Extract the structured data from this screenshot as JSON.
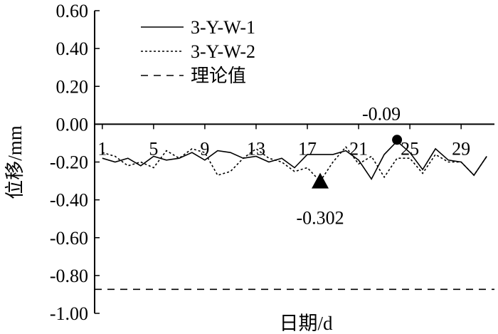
{
  "chart_data": {
    "type": "line",
    "xlabel": "日期/d",
    "ylabel": "位移/mm",
    "xlim": [
      0.4,
      31.6
    ],
    "ylim": [
      -1.0,
      0.6
    ],
    "x_ticks": [
      1,
      5,
      9,
      13,
      17,
      21,
      25,
      29
    ],
    "x_tick_labels": [
      "1",
      "5",
      "9",
      "13",
      "17",
      "21",
      "25",
      "29"
    ],
    "y_ticks": [
      -1.0,
      -0.8,
      -0.6,
      -0.4,
      -0.2,
      0.0,
      0.2,
      0.4,
      0.6
    ],
    "y_tick_labels": [
      "-1.00",
      "-0.80",
      "-0.60",
      "-0.40",
      "-0.20",
      "0.00",
      "0.20",
      "0.40",
      "0.60"
    ],
    "grid": false,
    "legend_position": "top-left",
    "series": [
      {
        "name": "3-Y-W-1",
        "style": "solid",
        "x": [
          1,
          2,
          3,
          4,
          5,
          6,
          7,
          8,
          9,
          10,
          11,
          12,
          13,
          14,
          15,
          16,
          17,
          18,
          19,
          20,
          21,
          22,
          23,
          24,
          25,
          26,
          27,
          28,
          29,
          30,
          31
        ],
        "values": [
          -0.18,
          -0.2,
          -0.18,
          -0.22,
          -0.17,
          -0.19,
          -0.18,
          -0.15,
          -0.19,
          -0.14,
          -0.15,
          -0.18,
          -0.17,
          -0.2,
          -0.18,
          -0.23,
          -0.16,
          -0.16,
          -0.16,
          -0.14,
          -0.19,
          -0.29,
          -0.16,
          -0.09,
          -0.15,
          -0.24,
          -0.13,
          -0.19,
          -0.2,
          -0.27,
          -0.17
        ]
      },
      {
        "name": "3-Y-W-2",
        "style": "dotted",
        "x": [
          1,
          2,
          3,
          4,
          5,
          6,
          7,
          8,
          9,
          10,
          11,
          12,
          13,
          14,
          15,
          16,
          17,
          18,
          19,
          20,
          21,
          22,
          23,
          24,
          25,
          26,
          27,
          28,
          29,
          30,
          31
        ],
        "values": [
          -0.15,
          -0.17,
          -0.22,
          -0.2,
          -0.23,
          -0.14,
          -0.18,
          -0.13,
          -0.15,
          -0.27,
          -0.25,
          -0.18,
          -0.13,
          -0.18,
          -0.2,
          -0.25,
          -0.23,
          -0.302,
          -0.2,
          -0.12,
          -0.21,
          -0.17,
          -0.28,
          -0.18,
          -0.18,
          -0.26,
          -0.16,
          -0.2,
          -0.2,
          -0.27,
          -0.17
        ]
      },
      {
        "name": "理论值",
        "style": "dashed",
        "x": [
          0.4,
          31.6
        ],
        "values": [
          -0.873,
          -0.873
        ]
      }
    ],
    "annotations": [
      {
        "label": "-0.09",
        "x": 24,
        "y": -0.09,
        "marker": "circle"
      },
      {
        "label": "-0.302",
        "x": 18,
        "y": -0.302,
        "marker": "triangle"
      }
    ]
  }
}
